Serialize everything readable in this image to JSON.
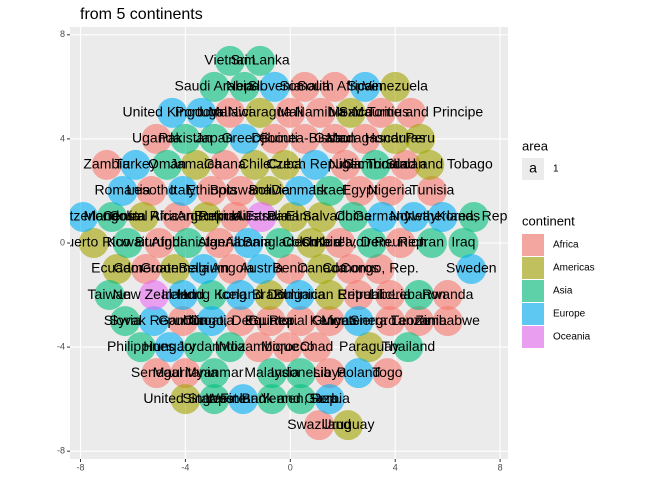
{
  "chart_data": {
    "type": "scatter",
    "title": "from 5 continents",
    "xlim": [
      -8.4,
      8.3
    ],
    "ylim": [
      -8.3,
      8.3
    ],
    "xticks": [
      -8,
      -4,
      0,
      4,
      8
    ],
    "yticks": [
      -8,
      -4,
      0,
      4,
      8
    ],
    "grid": true,
    "point_size": 1,
    "size_legend": {
      "title": "area",
      "key_glyph": "a",
      "values": [
        1
      ]
    },
    "legend_title": "continent",
    "legend_position": "right",
    "series": [
      {
        "name": "Africa",
        "color": "#F8766D",
        "x": [
          0.55,
          1.7,
          -2.3,
          0,
          1.15,
          3.45,
          4.6,
          -5.1,
          -0.6,
          0.55,
          1.7,
          2.85,
          -7.0,
          -2.5,
          2.1,
          4.4,
          -5.3,
          -3.0,
          -1.9,
          2.65,
          3.8,
          5.4,
          -4.3,
          -2.1,
          -5.0,
          -2.7,
          1.9,
          4.2,
          -5.5,
          -2.2,
          0,
          2.3,
          3.4,
          2.6,
          3.8,
          6.0,
          -4.1,
          -1.9,
          -0.75,
          0.4,
          1.5,
          3.8,
          4.9,
          6.0,
          -1.2,
          -0.1,
          1.0,
          -5.1,
          -4.0,
          1.5,
          3.7,
          1.1
        ],
        "y": [
          6,
          6,
          5,
          5,
          5,
          5,
          5,
          4,
          4,
          4,
          4,
          4,
          3,
          3,
          3,
          3,
          2,
          2,
          2,
          2,
          2,
          2,
          1,
          1,
          0,
          0,
          0,
          0,
          -1,
          -1,
          -1,
          -1,
          -1,
          -2,
          -2,
          -2,
          -3,
          -3,
          -3,
          -3,
          -3,
          -3,
          -3,
          -3,
          -4,
          -4,
          -4,
          -5,
          -5,
          -5,
          -5,
          -7
        ],
        "labels": [
          "Somalia",
          "South Africa",
          "Malawi",
          "Mali",
          "Namibia",
          "Mauritius",
          "Sao Tome and Principe",
          "Uganda",
          "Djibouti",
          "Guinea-Bissau",
          "Gabon",
          "Madagascar",
          "Zambia",
          "Ghana",
          "Niger",
          "Sudan",
          "Lesotho",
          "Ethiopia",
          "Botswana",
          "Egypt",
          "Nigeria",
          "Tunisia",
          "Central African Republic",
          "Burkina Faso",
          "Burundi",
          "Algeria",
          "Cote d'Ivoire",
          "Reunion",
          "Cameroon",
          "Angola",
          "Benin",
          "Comoros",
          "Congo, Rep.",
          "Eritrea",
          "Liberia",
          "Rwanda",
          "Gambia",
          "Congo, Dem. Rep.",
          "Guinea",
          "Equatorial Guinea",
          "Kenya",
          "Sierra Leone",
          "Tanzania",
          "Zimbabwe",
          "Mozambique",
          "Morocco",
          "Chad",
          "Senegal",
          "Mauritania",
          "Libya",
          "Togo",
          "Swaziland"
        ]
      },
      {
        "name": "Americas",
        "color": "#A3A500",
        "x": [
          4.0,
          -1.15,
          2.3,
          4.0,
          4.95,
          -3.6,
          -1.35,
          -0.2,
          5.3,
          -0.8,
          -5.6,
          -3.2,
          0.1,
          1.2,
          -7.5,
          0.8,
          -6.6,
          -4.4,
          1.2,
          -0.8,
          1.5,
          3.0,
          -4.0,
          2.2
        ],
        "y": [
          6,
          5,
          5,
          4,
          4,
          3,
          3,
          3,
          3,
          2,
          1,
          1,
          1,
          1,
          0,
          0,
          -1,
          -1,
          -1,
          -2,
          -2,
          -4,
          -6,
          -7
        ],
        "labels": [
          "Venezuela",
          "Nicaragua",
          "Mexico",
          "Honduras",
          "Peru",
          "Jamaica",
          "Chile",
          "Cuba",
          "Trinidad and Tobago",
          "Bolivia",
          "Costa Rica",
          "Argentina",
          "Panama",
          "El Salvador",
          "Puerto Rico",
          "Colombia",
          "Ecuador",
          "Guatemala",
          "Canada",
          "Brazil",
          "Dominican Republic",
          "Paraguay",
          "United States",
          "Uruguay"
        ]
      },
      {
        "name": "Asia",
        "color": "#00BF7D",
        "x": [
          -2.3,
          -1.15,
          -2.9,
          -1.75,
          -4.0,
          -2.9,
          -4.7,
          3.25,
          1.5,
          -6.8,
          2.4,
          7.0,
          -6.2,
          -3.9,
          -0.4,
          3.1,
          5.4,
          6.6,
          -6.9,
          -3.0,
          4.9,
          -6.3,
          -5.7,
          -3.5,
          -2.3,
          4.5,
          -2.9,
          -0.7,
          0.4,
          -2.9,
          -0.7,
          0.4
        ],
        "y": [
          7,
          7,
          6,
          6,
          4,
          4,
          3,
          3,
          2,
          1,
          1,
          1,
          0,
          0,
          0,
          0,
          0,
          0,
          -2,
          -2,
          -2,
          -3,
          -4,
          -4,
          -4,
          -4,
          -5,
          -5,
          -5,
          -6,
          -6,
          -6
        ],
        "labels": [
          "Vietnam",
          "Sri Lanka",
          "Saudi Arabia",
          "Nepal",
          "Pakistan",
          "Japan",
          "Oman",
          "Cambodia",
          "Israel",
          "Mongolia",
          "China",
          "Korea, Rep.",
          "Kuwait",
          "Afghanistan",
          "Bangladesh",
          "Korea, Dem. Rep.",
          "Iran",
          "Iraq",
          "Taiwan",
          "Hong Kong",
          "Lebanon",
          "Syria",
          "Philippines",
          "Jordan",
          "India",
          "Thailand",
          "Myanmar",
          "Malaysia",
          "Indonesia",
          "Singapore",
          "West Bank and Gaza",
          "Yemen, Rep."
        ]
      },
      {
        "name": "Europe",
        "color": "#00B0F6",
        "x": [
          -0.6,
          2.85,
          -4.5,
          -3.4,
          -1.75,
          -5.9,
          0.95,
          -6.4,
          -4.1,
          0.35,
          -7.9,
          3.5,
          4.7,
          5.8,
          -1.6,
          -3.3,
          -1.1,
          6.9,
          -4.1,
          -1.9,
          0.35,
          -5.2,
          -3.0,
          2.6,
          -4.6,
          2.6,
          -1.8,
          1.5
        ],
        "y": [
          6,
          6,
          5,
          5,
          4,
          3,
          3,
          2,
          2,
          2,
          1,
          1,
          1,
          1,
          0,
          -1,
          -1,
          -1,
          -2,
          -2,
          -2,
          -3,
          -3,
          -3,
          -4,
          -5,
          -6,
          -6
        ],
        "labels": [
          "Slovenia",
          "Spain",
          "United Kingdom",
          "Portugal",
          "Greece",
          "Turkey",
          "Czech Republic",
          "Romania",
          "Italy",
          "Denmark",
          "Switzerland",
          "Germany",
          "Norway",
          "Netherlands",
          "Albania",
          "Belgium",
          "Austria",
          "Sweden",
          "Ireland",
          "Iceland",
          "Bulgaria",
          "Slovak Republic",
          "Croatia",
          "Montenegro",
          "Hungary",
          "Poland",
          "Finland",
          "Serbia"
        ]
      },
      {
        "name": "Oceania",
        "color": "#E76BF3",
        "x": [
          -1.1,
          -5.2
        ],
        "y": [
          1,
          -2
        ],
        "labels": [
          "Australia",
          "New Zealand"
        ]
      }
    ]
  }
}
